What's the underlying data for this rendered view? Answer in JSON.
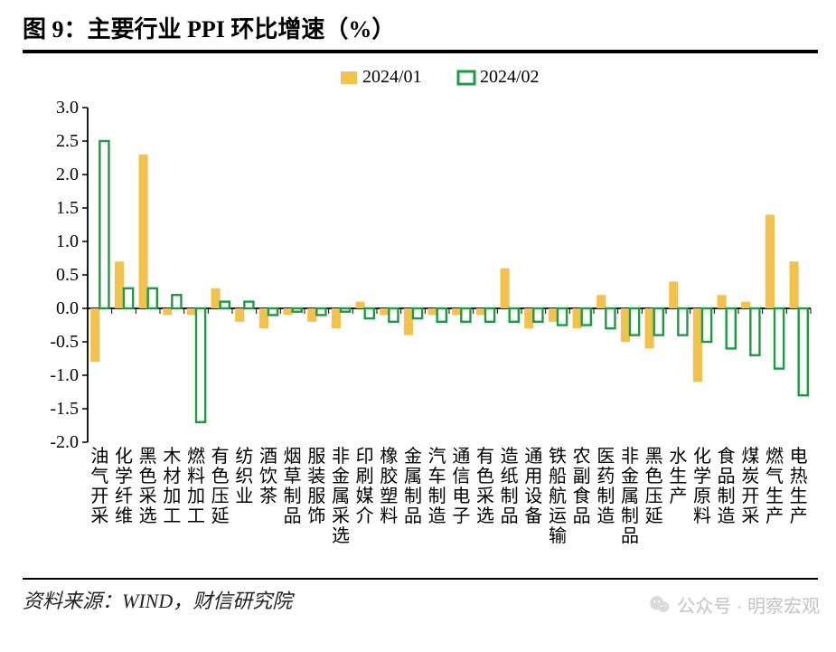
{
  "title_prefix": "图 ",
  "title_number": "9",
  "title_sep": "：",
  "title_text": "主要行业 PPI 环比增速（%）",
  "source_text": "资料来源：WIND，财信研究院",
  "watermark_text": "公众号 · 明察宏观",
  "chart": {
    "type": "bar",
    "ylim": [
      -2.0,
      3.0
    ],
    "ytick_step": 0.5,
    "yticks": [
      "3.0",
      "2.5",
      "2.0",
      "1.5",
      "1.0",
      "0.5",
      "0.0",
      "-0.5",
      "-1.0",
      "-1.5",
      "-2.0"
    ],
    "axis_color": "#000000",
    "background_color": "#ffffff",
    "series": [
      {
        "name": "2024/01",
        "fill": "#f2c24c",
        "stroke": "#f2c24c",
        "type": "solid"
      },
      {
        "name": "2024/02",
        "fill": "none",
        "stroke": "#1a9c3f",
        "type": "outline"
      }
    ],
    "categories": [
      "油气开采",
      "化学纤维",
      "黑色采选",
      "木材加工",
      "燃料加工",
      "有色压延",
      "纺织业",
      "酒饮茶",
      "烟草制品",
      "服装服饰",
      "非金属采选",
      "印刷媒介",
      "橡胶塑料",
      "金属制品",
      "汽车制造",
      "通信电子",
      "有色采选",
      "造纸制品",
      "通用设备",
      "铁船航运输",
      "农副食品",
      "医药制造",
      "非金属制品",
      "黑色压延",
      "水生产",
      "化学原料",
      "食品制造",
      "煤炭开采",
      "燃气生产",
      "电热生产"
    ],
    "values_series1": [
      -0.8,
      0.7,
      2.3,
      -0.1,
      -0.1,
      0.3,
      -0.2,
      -0.3,
      -0.1,
      -0.2,
      -0.3,
      0.1,
      -0.1,
      -0.4,
      -0.1,
      -0.1,
      -0.1,
      0.6,
      -0.3,
      -0.2,
      -0.3,
      0.2,
      -0.5,
      -0.6,
      0.4,
      -1.1,
      0.2,
      0.1,
      1.4,
      0.7
    ],
    "values_series2": [
      2.5,
      0.3,
      0.3,
      0.2,
      -1.7,
      0.1,
      0.1,
      -0.1,
      -0.05,
      -0.1,
      -0.05,
      -0.15,
      -0.2,
      -0.15,
      -0.2,
      -0.2,
      -0.2,
      -0.2,
      -0.2,
      -0.25,
      -0.25,
      -0.3,
      -0.4,
      -0.4,
      -0.4,
      -0.5,
      -0.6,
      -0.7,
      -0.9,
      -1.3
    ]
  }
}
